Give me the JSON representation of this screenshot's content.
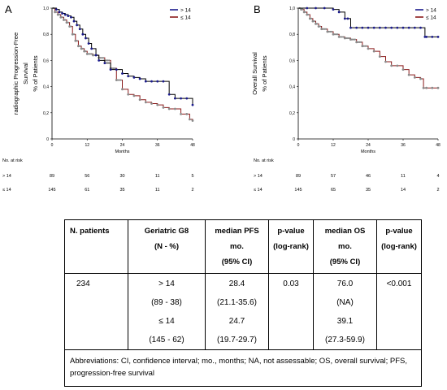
{
  "chart_data": [
    {
      "type": "line",
      "step": true,
      "panel": "A",
      "ylabel": "radiographic Progression-Free Survival\n% of Patients",
      "xlabel": "Months",
      "xlim": [
        0,
        48
      ],
      "ylim": [
        0,
        1
      ],
      "xticks": [
        "0",
        "12",
        "24",
        "36",
        "48"
      ],
      "yticks": [
        "0",
        "0,2",
        "0,4",
        "0,6",
        "0,8",
        "1,0"
      ],
      "legend_position": "top-right",
      "series": [
        {
          "name": "> 14",
          "color": "#1a1a8c",
          "x": [
            0,
            1.5,
            2.5,
            3.5,
            4.5,
            5.5,
            6.5,
            7.5,
            8.5,
            9.5,
            10.5,
            11.5,
            12.5,
            13.5,
            15,
            16,
            18,
            20,
            22,
            24,
            26,
            28,
            30,
            32,
            34,
            36,
            38,
            40,
            42,
            44,
            46,
            48
          ],
          "y": [
            1.0,
            0.99,
            0.97,
            0.96,
            0.95,
            0.94,
            0.93,
            0.9,
            0.87,
            0.84,
            0.8,
            0.77,
            0.73,
            0.69,
            0.64,
            0.6,
            0.58,
            0.53,
            0.53,
            0.5,
            0.48,
            0.47,
            0.46,
            0.44,
            0.44,
            0.44,
            0.44,
            0.34,
            0.31,
            0.31,
            0.31,
            0.26
          ]
        },
        {
          "name": "≤ 14",
          "color": "#8b1a1a",
          "x": [
            0,
            1,
            2,
            3,
            4,
            5,
            6,
            7,
            8,
            9,
            10,
            11,
            12,
            14,
            16,
            18,
            20,
            22,
            24,
            26,
            28,
            30,
            32,
            34,
            36,
            38,
            40,
            42,
            44,
            46,
            47,
            48
          ],
          "y": [
            1.0,
            0.97,
            0.95,
            0.93,
            0.91,
            0.89,
            0.86,
            0.8,
            0.75,
            0.71,
            0.69,
            0.67,
            0.65,
            0.64,
            0.62,
            0.6,
            0.54,
            0.45,
            0.38,
            0.34,
            0.33,
            0.3,
            0.28,
            0.27,
            0.26,
            0.24,
            0.23,
            0.23,
            0.19,
            0.19,
            0.15,
            0.14
          ]
        }
      ],
      "risk_table": {
        "header": "No. at risk",
        "rows": [
          {
            "label": "> 14",
            "values": [
              "89",
              "56",
              "30",
              "11",
              "5"
            ]
          },
          {
            "label": "≤ 14",
            "values": [
              "145",
              "61",
              "35",
              "11",
              "2"
            ]
          }
        ]
      }
    },
    {
      "type": "line",
      "step": true,
      "panel": "B",
      "ylabel": "Overall Survival\n% of Patients",
      "xlabel": "Months",
      "xlim": [
        0,
        48
      ],
      "ylim": [
        0,
        1
      ],
      "xticks": [
        "0",
        "12",
        "24",
        "36",
        "48"
      ],
      "yticks": [
        "0",
        "0,2",
        "0,4",
        "0,6",
        "0,8",
        "1,0"
      ],
      "legend_position": "top-right",
      "series": [
        {
          "name": "> 14",
          "color": "#1a1a8c",
          "x": [
            0,
            3,
            6,
            9,
            12,
            14,
            16,
            17,
            18,
            20,
            22,
            24,
            26,
            28,
            30,
            32,
            34,
            36,
            38,
            40,
            42,
            43.5,
            44,
            46,
            48
          ],
          "y": [
            1.0,
            1.0,
            1.0,
            1.0,
            0.99,
            0.97,
            0.92,
            0.92,
            0.85,
            0.85,
            0.85,
            0.85,
            0.85,
            0.85,
            0.85,
            0.85,
            0.85,
            0.85,
            0.85,
            0.85,
            0.85,
            0.78,
            0.78,
            0.78,
            0.78
          ]
        },
        {
          "name": "≤ 14",
          "color": "#8b1a1a",
          "x": [
            0,
            1,
            2,
            3,
            4,
            5,
            6,
            7,
            8,
            10,
            12,
            14,
            16,
            18,
            20,
            22,
            24,
            26,
            28,
            30,
            32,
            34,
            36,
            38,
            40,
            42,
            43,
            44,
            46,
            48
          ],
          "y": [
            1.0,
            0.99,
            0.97,
            0.95,
            0.92,
            0.9,
            0.88,
            0.86,
            0.84,
            0.82,
            0.8,
            0.78,
            0.77,
            0.76,
            0.74,
            0.71,
            0.69,
            0.67,
            0.63,
            0.59,
            0.56,
            0.56,
            0.53,
            0.49,
            0.47,
            0.46,
            0.39,
            0.39,
            0.39,
            0.39
          ]
        }
      ],
      "risk_table": {
        "header": "No. at risk",
        "rows": [
          {
            "label": "> 14",
            "values": [
              "89",
              "57",
              "46",
              "11",
              "4"
            ]
          },
          {
            "label": "≤ 14",
            "values": [
              "145",
              "65",
              "35",
              "14",
              "2"
            ]
          }
        ]
      }
    }
  ],
  "table": {
    "headers": {
      "n_patients": "N. patients",
      "g8": [
        "Geriatric G8",
        "(N - %)"
      ],
      "pfs": [
        "median PFS",
        "mo.",
        "(95% CI)"
      ],
      "pfs_p": [
        "p-value",
        "(log-rank)"
      ],
      "os": [
        "median OS",
        "mo.",
        "(95% CI)"
      ],
      "os_p": [
        "p-value",
        "(log-rank)"
      ]
    },
    "row": {
      "n_patients": "234",
      "g8": [
        "> 14",
        "(89 - 38)",
        "≤ 14",
        "(145 - 62)"
      ],
      "pfs": [
        "28.4",
        "(21.1-35.6)",
        "24.7",
        "(19.7-29.7)"
      ],
      "pfs_p": "0.03",
      "os": [
        "76.0",
        "(NA)",
        "39.1",
        "(27.3-59.9)"
      ],
      "os_p": "<0.001"
    },
    "abbreviations": "Abbreviations: CI, confidence interval; mo., months; NA, not assessable; OS, overall survival; PFS, progression-free survival"
  }
}
